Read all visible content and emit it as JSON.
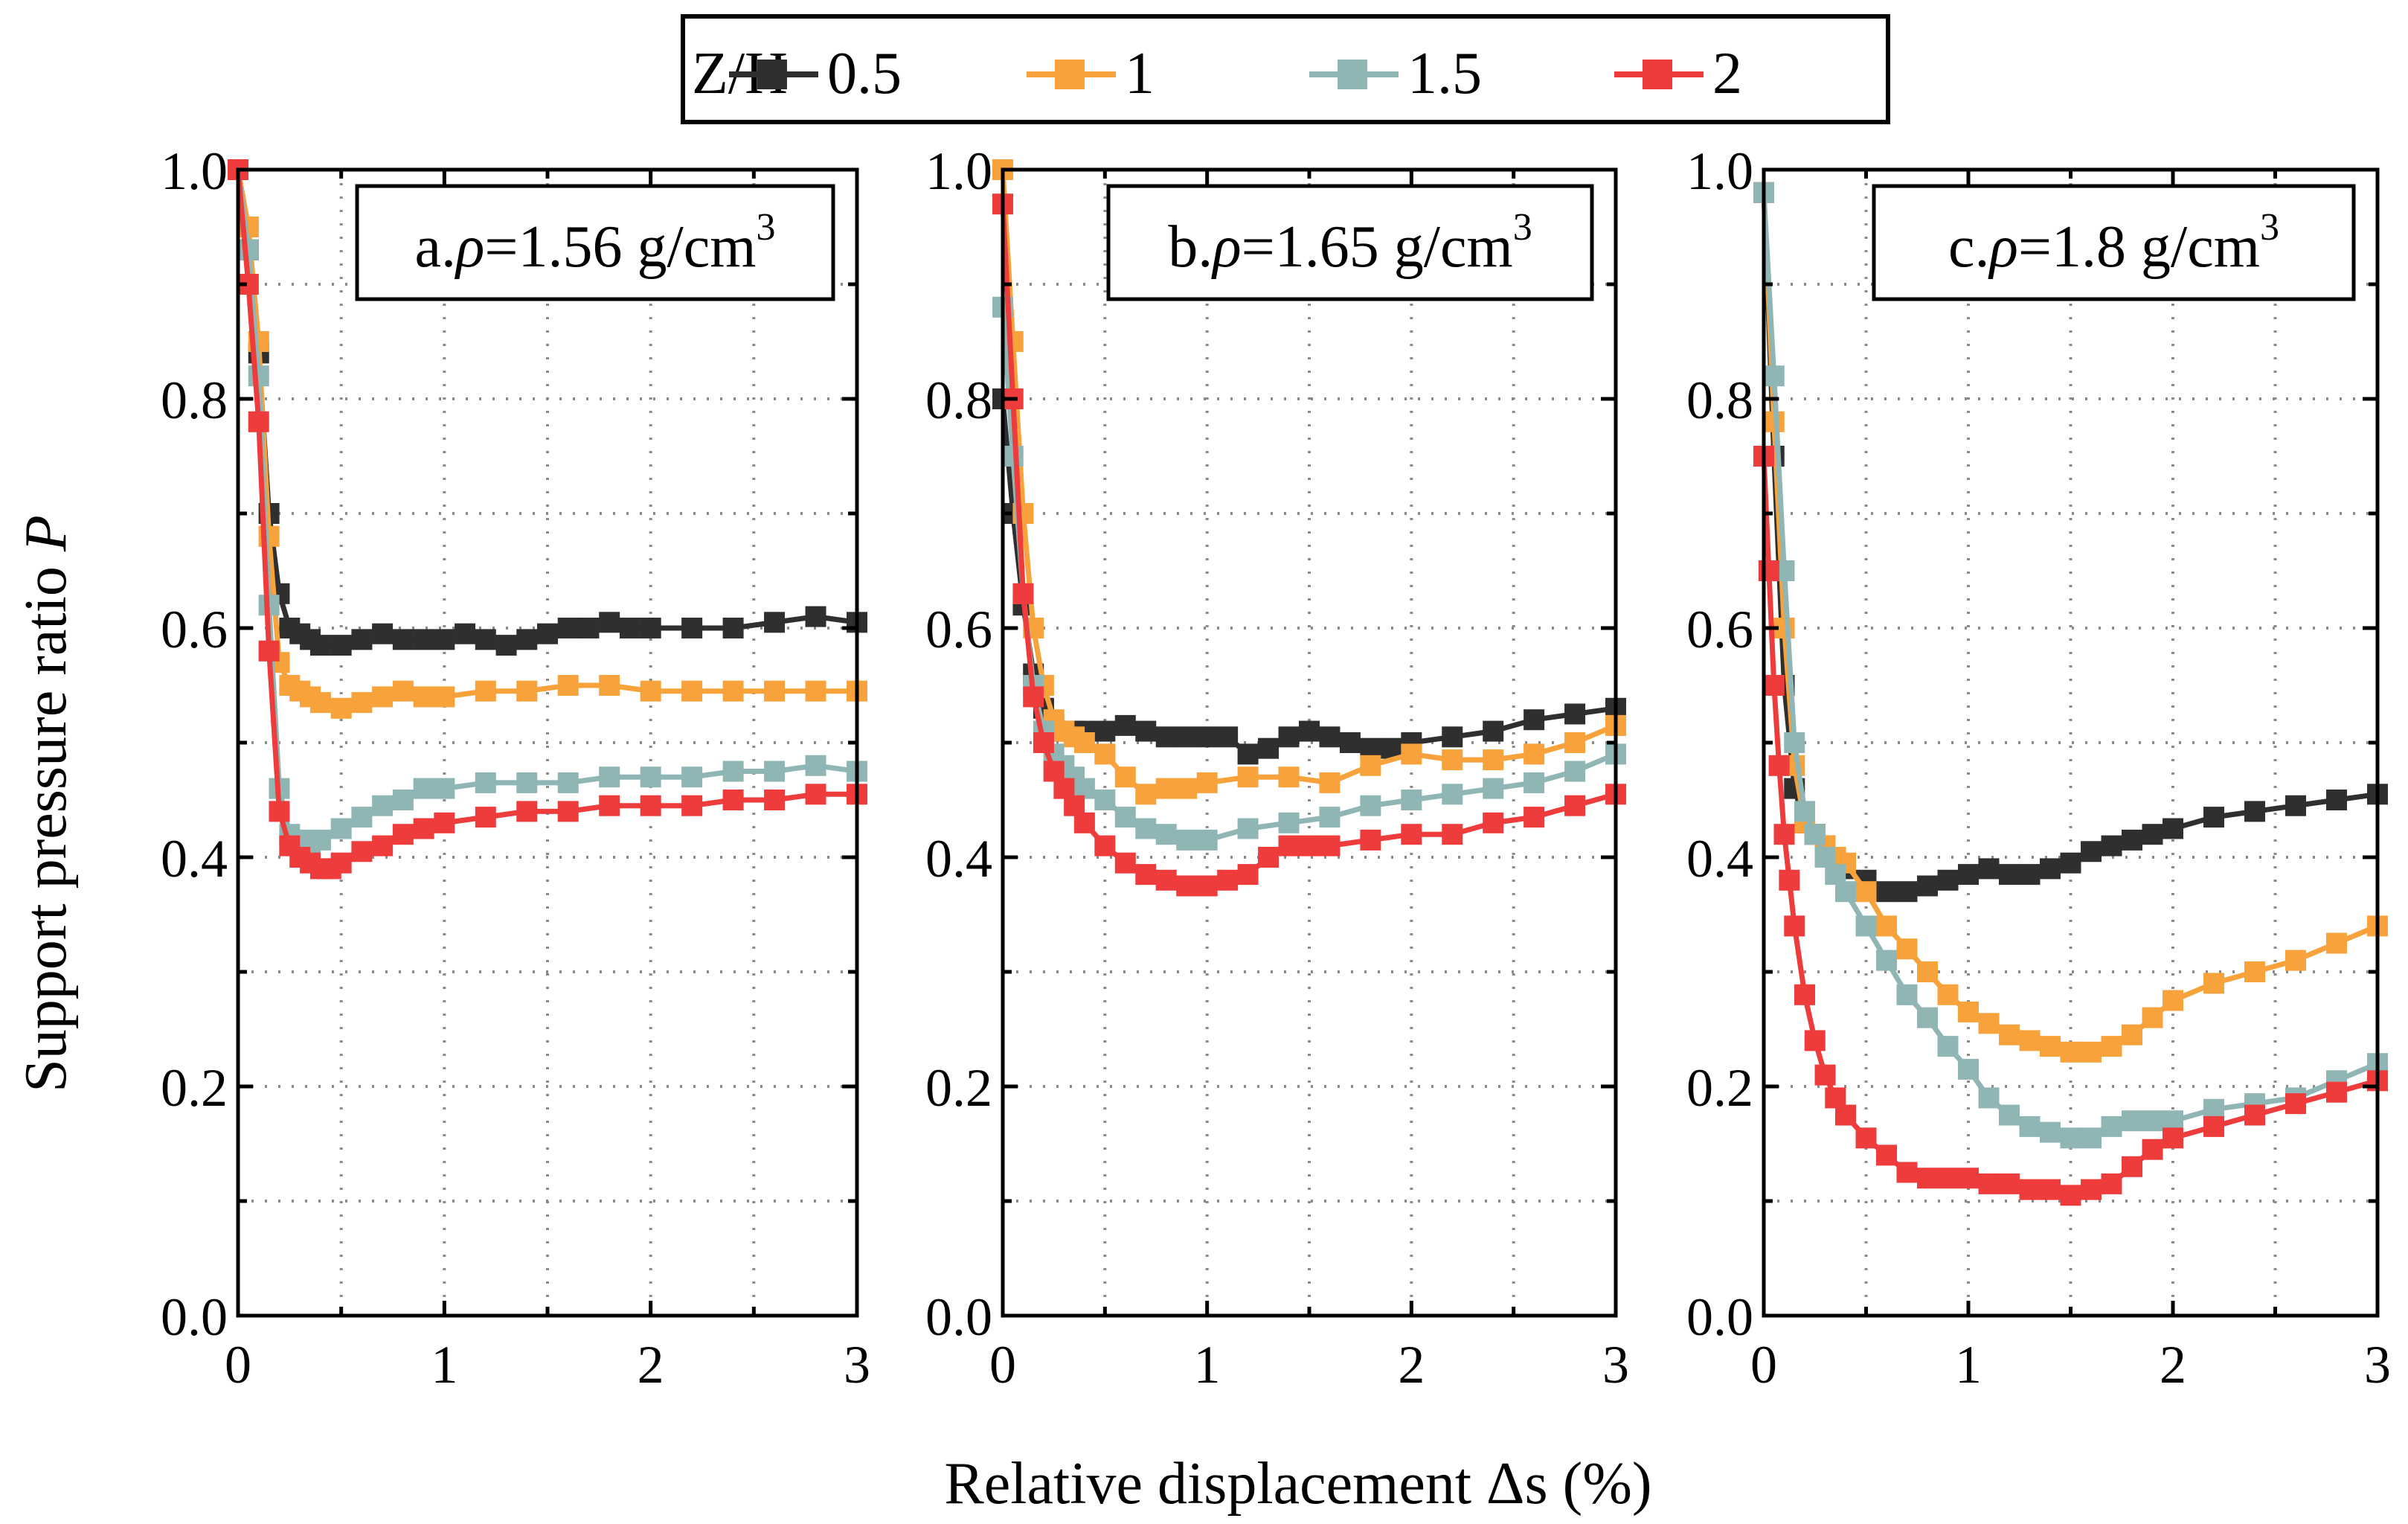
{
  "chart_data": {
    "type": "line",
    "xlabel": "Relative displacement Δs (%)",
    "ylabel": "Support pressure ratio",
    "ylabel_var": "P",
    "xlim": [
      0,
      3
    ],
    "ylim": [
      0,
      1
    ],
    "xticks": [
      "0",
      "1",
      "2",
      "3"
    ],
    "yticks": [
      "0.0",
      "0.2",
      "0.4",
      "0.6",
      "0.8",
      "1.0"
    ],
    "grid": true,
    "legend": {
      "title": "Z/H",
      "placement": "top-center",
      "entries": [
        {
          "label": "0.5",
          "color": "#2f2f2f"
        },
        {
          "label": "1",
          "color": "#f7a23a"
        },
        {
          "label": "1.5",
          "color": "#8fb5b5"
        },
        {
          "label": "2",
          "color": "#ee3b3b"
        }
      ]
    },
    "panels": [
      {
        "title_prefix": "a.",
        "rho": "ρ",
        "title_value": "=1.56 g/cm",
        "title_exp": "3",
        "series": [
          {
            "name": "0.5",
            "x": [
              0,
              0.05,
              0.1,
              0.15,
              0.2,
              0.25,
              0.3,
              0.35,
              0.4,
              0.5,
              0.6,
              0.7,
              0.8,
              0.9,
              1.0,
              1.1,
              1.2,
              1.3,
              1.4,
              1.5,
              1.6,
              1.7,
              1.8,
              1.9,
              2.0,
              2.2,
              2.4,
              2.6,
              2.8,
              3.0
            ],
            "y": [
              1.0,
              0.93,
              0.84,
              0.7,
              0.63,
              0.6,
              0.595,
              0.59,
              0.585,
              0.585,
              0.59,
              0.595,
              0.59,
              0.59,
              0.59,
              0.595,
              0.59,
              0.585,
              0.59,
              0.595,
              0.6,
              0.6,
              0.605,
              0.6,
              0.6,
              0.6,
              0.6,
              0.605,
              0.61,
              0.605
            ]
          },
          {
            "name": "1",
            "x": [
              0,
              0.05,
              0.1,
              0.15,
              0.2,
              0.25,
              0.3,
              0.35,
              0.4,
              0.5,
              0.6,
              0.7,
              0.8,
              0.9,
              1.0,
              1.2,
              1.4,
              1.6,
              1.8,
              2.0,
              2.2,
              2.4,
              2.6,
              2.8,
              3.0
            ],
            "y": [
              1.0,
              0.95,
              0.85,
              0.68,
              0.57,
              0.55,
              0.545,
              0.54,
              0.535,
              0.53,
              0.535,
              0.54,
              0.545,
              0.54,
              0.54,
              0.545,
              0.545,
              0.55,
              0.55,
              0.545,
              0.545,
              0.545,
              0.545,
              0.545,
              0.545
            ]
          },
          {
            "name": "1.5",
            "x": [
              0,
              0.05,
              0.1,
              0.15,
              0.2,
              0.25,
              0.3,
              0.35,
              0.4,
              0.5,
              0.6,
              0.7,
              0.8,
              0.9,
              1.0,
              1.2,
              1.4,
              1.6,
              1.8,
              2.0,
              2.2,
              2.4,
              2.6,
              2.8,
              3.0
            ],
            "y": [
              1.0,
              0.93,
              0.82,
              0.62,
              0.46,
              0.42,
              0.415,
              0.41,
              0.415,
              0.425,
              0.435,
              0.445,
              0.45,
              0.46,
              0.46,
              0.465,
              0.465,
              0.465,
              0.47,
              0.47,
              0.47,
              0.475,
              0.475,
              0.48,
              0.475
            ]
          },
          {
            "name": "2",
            "x": [
              0,
              0.05,
              0.1,
              0.15,
              0.2,
              0.25,
              0.3,
              0.35,
              0.4,
              0.45,
              0.5,
              0.6,
              0.7,
              0.8,
              0.9,
              1.0,
              1.2,
              1.4,
              1.6,
              1.8,
              2.0,
              2.2,
              2.4,
              2.6,
              2.8,
              3.0
            ],
            "y": [
              1.0,
              0.9,
              0.78,
              0.58,
              0.44,
              0.41,
              0.4,
              0.395,
              0.39,
              0.39,
              0.395,
              0.405,
              0.41,
              0.42,
              0.425,
              0.43,
              0.435,
              0.44,
              0.44,
              0.445,
              0.445,
              0.445,
              0.45,
              0.45,
              0.455,
              0.455
            ]
          }
        ]
      },
      {
        "title_prefix": "b.",
        "rho": "ρ",
        "title_value": "=1.65 g/cm",
        "title_exp": "3",
        "series": [
          {
            "name": "0.5",
            "x": [
              0,
              0.05,
              0.1,
              0.15,
              0.2,
              0.25,
              0.3,
              0.35,
              0.4,
              0.5,
              0.6,
              0.7,
              0.8,
              0.9,
              1.0,
              1.1,
              1.2,
              1.3,
              1.4,
              1.5,
              1.6,
              1.7,
              1.8,
              1.9,
              2.0,
              2.2,
              2.4,
              2.6,
              2.8,
              3.0
            ],
            "y": [
              0.8,
              0.7,
              0.62,
              0.56,
              0.53,
              0.515,
              0.51,
              0.51,
              0.51,
              0.51,
              0.515,
              0.51,
              0.505,
              0.505,
              0.505,
              0.505,
              0.49,
              0.495,
              0.505,
              0.51,
              0.505,
              0.5,
              0.495,
              0.495,
              0.5,
              0.505,
              0.51,
              0.52,
              0.525,
              0.53
            ]
          },
          {
            "name": "1",
            "x": [
              0,
              0.05,
              0.1,
              0.15,
              0.2,
              0.25,
              0.3,
              0.35,
              0.4,
              0.5,
              0.6,
              0.7,
              0.8,
              0.9,
              1.0,
              1.2,
              1.4,
              1.6,
              1.8,
              2.0,
              2.2,
              2.4,
              2.6,
              2.8,
              3.0
            ],
            "y": [
              1.0,
              0.85,
              0.7,
              0.6,
              0.55,
              0.52,
              0.51,
              0.505,
              0.5,
              0.49,
              0.47,
              0.455,
              0.46,
              0.46,
              0.465,
              0.47,
              0.47,
              0.465,
              0.48,
              0.49,
              0.485,
              0.485,
              0.49,
              0.5,
              0.515
            ]
          },
          {
            "name": "1.5",
            "x": [
              0,
              0.05,
              0.1,
              0.15,
              0.2,
              0.25,
              0.3,
              0.35,
              0.4,
              0.5,
              0.6,
              0.7,
              0.8,
              0.9,
              1.0,
              1.2,
              1.4,
              1.6,
              1.8,
              2.0,
              2.2,
              2.4,
              2.6,
              2.8,
              3.0
            ],
            "y": [
              0.88,
              0.75,
              0.63,
              0.55,
              0.51,
              0.49,
              0.48,
              0.47,
              0.46,
              0.45,
              0.435,
              0.425,
              0.42,
              0.415,
              0.415,
              0.425,
              0.43,
              0.435,
              0.445,
              0.45,
              0.455,
              0.46,
              0.465,
              0.475,
              0.49
            ]
          },
          {
            "name": "2",
            "x": [
              0,
              0.05,
              0.1,
              0.15,
              0.2,
              0.25,
              0.3,
              0.35,
              0.4,
              0.5,
              0.6,
              0.7,
              0.8,
              0.9,
              1.0,
              1.1,
              1.2,
              1.3,
              1.4,
              1.5,
              1.6,
              1.8,
              2.0,
              2.2,
              2.4,
              2.6,
              2.8,
              3.0
            ],
            "y": [
              0.97,
              0.8,
              0.63,
              0.54,
              0.5,
              0.475,
              0.46,
              0.445,
              0.43,
              0.41,
              0.395,
              0.385,
              0.38,
              0.375,
              0.375,
              0.38,
              0.385,
              0.4,
              0.41,
              0.41,
              0.41,
              0.415,
              0.42,
              0.42,
              0.43,
              0.435,
              0.445,
              0.455
            ]
          }
        ]
      },
      {
        "title_prefix": "c.",
        "rho": "ρ",
        "title_value": "=1.8 g/cm",
        "title_exp": "3",
        "series": [
          {
            "name": "0.5",
            "x": [
              0,
              0.05,
              0.1,
              0.15,
              0.2,
              0.25,
              0.3,
              0.35,
              0.4,
              0.5,
              0.6,
              0.7,
              0.8,
              0.9,
              1.0,
              1.1,
              1.2,
              1.3,
              1.4,
              1.5,
              1.6,
              1.7,
              1.8,
              1.9,
              2.0,
              2.2,
              2.4,
              2.6,
              2.8,
              3.0
            ],
            "y": [
              0.98,
              0.75,
              0.55,
              0.46,
              0.43,
              0.42,
              0.41,
              0.4,
              0.39,
              0.38,
              0.37,
              0.37,
              0.375,
              0.38,
              0.385,
              0.39,
              0.385,
              0.385,
              0.39,
              0.395,
              0.405,
              0.41,
              0.415,
              0.42,
              0.425,
              0.435,
              0.44,
              0.445,
              0.45,
              0.455
            ]
          },
          {
            "name": "1",
            "x": [
              0,
              0.05,
              0.1,
              0.15,
              0.2,
              0.25,
              0.3,
              0.35,
              0.4,
              0.5,
              0.6,
              0.7,
              0.8,
              0.9,
              1.0,
              1.1,
              1.2,
              1.3,
              1.4,
              1.5,
              1.6,
              1.7,
              1.8,
              1.9,
              2.0,
              2.2,
              2.4,
              2.6,
              2.8,
              3.0
            ],
            "y": [
              0.98,
              0.78,
              0.6,
              0.48,
              0.43,
              0.42,
              0.41,
              0.4,
              0.395,
              0.37,
              0.34,
              0.32,
              0.3,
              0.28,
              0.265,
              0.255,
              0.245,
              0.24,
              0.235,
              0.23,
              0.23,
              0.235,
              0.245,
              0.26,
              0.275,
              0.29,
              0.3,
              0.31,
              0.325,
              0.34
            ]
          },
          {
            "name": "1.5",
            "x": [
              0,
              0.05,
              0.1,
              0.15,
              0.2,
              0.25,
              0.3,
              0.35,
              0.4,
              0.5,
              0.6,
              0.7,
              0.8,
              0.9,
              1.0,
              1.1,
              1.2,
              1.3,
              1.4,
              1.5,
              1.6,
              1.7,
              1.8,
              1.9,
              2.0,
              2.2,
              2.4,
              2.6,
              2.8,
              3.0
            ],
            "y": [
              0.98,
              0.82,
              0.65,
              0.5,
              0.44,
              0.42,
              0.4,
              0.385,
              0.37,
              0.34,
              0.31,
              0.28,
              0.26,
              0.235,
              0.215,
              0.19,
              0.175,
              0.165,
              0.16,
              0.155,
              0.155,
              0.165,
              0.17,
              0.17,
              0.17,
              0.18,
              0.185,
              0.19,
              0.205,
              0.22
            ]
          },
          {
            "name": "2",
            "x": [
              0,
              0.025,
              0.05,
              0.075,
              0.1,
              0.125,
              0.15,
              0.2,
              0.25,
              0.3,
              0.35,
              0.4,
              0.5,
              0.6,
              0.7,
              0.8,
              0.9,
              1.0,
              1.1,
              1.2,
              1.3,
              1.4,
              1.5,
              1.6,
              1.7,
              1.8,
              1.9,
              2.0,
              2.2,
              2.4,
              2.6,
              2.8,
              3.0
            ],
            "y": [
              0.75,
              0.65,
              0.55,
              0.48,
              0.42,
              0.38,
              0.34,
              0.28,
              0.24,
              0.21,
              0.19,
              0.175,
              0.155,
              0.14,
              0.125,
              0.12,
              0.12,
              0.12,
              0.115,
              0.115,
              0.11,
              0.11,
              0.105,
              0.11,
              0.115,
              0.13,
              0.145,
              0.155,
              0.165,
              0.175,
              0.185,
              0.195,
              0.205
            ]
          }
        ]
      }
    ]
  }
}
